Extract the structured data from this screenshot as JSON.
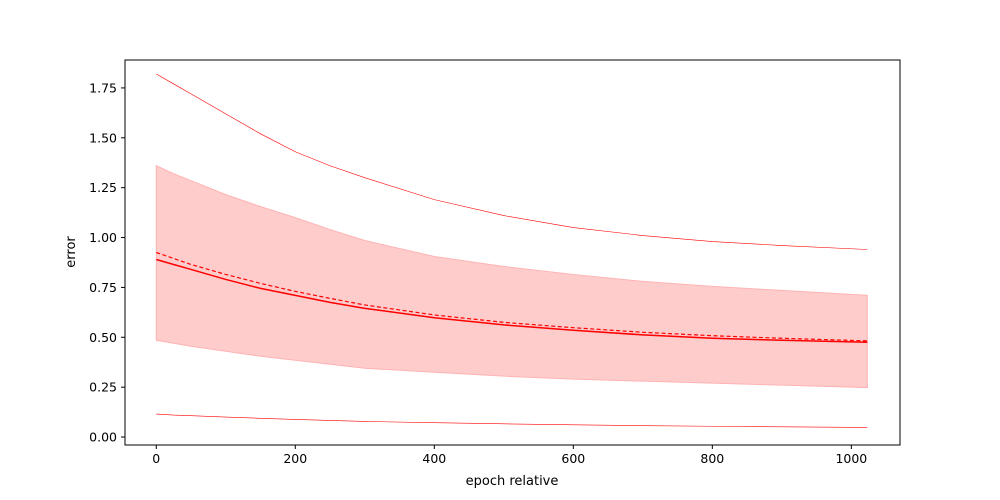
{
  "chart_data": {
    "type": "line",
    "title": "",
    "xlabel": "epoch relative",
    "ylabel": "error",
    "xlim": [
      -45,
      1070
    ],
    "ylim": [
      -0.04,
      1.89
    ],
    "x_ticks": [
      0,
      200,
      400,
      600,
      800,
      1000
    ],
    "y_ticks": [
      0.0,
      0.25,
      0.5,
      0.75,
      1.0,
      1.25,
      1.5,
      1.75
    ],
    "grid": false,
    "legend": "none",
    "x": [
      0,
      25,
      50,
      100,
      150,
      200,
      250,
      300,
      400,
      500,
      600,
      700,
      800,
      900,
      1023
    ],
    "series": [
      {
        "role": "median",
        "style": "solid",
        "color": "#ff0000",
        "values": [
          0.89,
          0.865,
          0.84,
          0.79,
          0.745,
          0.71,
          0.675,
          0.645,
          0.598,
          0.562,
          0.535,
          0.512,
          0.495,
          0.485,
          0.475
        ]
      },
      {
        "role": "mean",
        "style": "dashed",
        "color": "#ff0000",
        "values": [
          0.925,
          0.895,
          0.865,
          0.815,
          0.77,
          0.73,
          0.695,
          0.662,
          0.612,
          0.575,
          0.548,
          0.525,
          0.508,
          0.495,
          0.482
        ]
      },
      {
        "role": "band-upper",
        "color": "#ffcccc",
        "values": [
          1.36,
          1.32,
          1.285,
          1.215,
          1.155,
          1.1,
          1.04,
          0.985,
          0.905,
          0.855,
          0.815,
          0.78,
          0.755,
          0.735,
          0.71
        ]
      },
      {
        "role": "band-lower",
        "color": "#ffcccc",
        "values": [
          0.485,
          0.47,
          0.455,
          0.43,
          0.405,
          0.385,
          0.365,
          0.345,
          0.325,
          0.305,
          0.29,
          0.28,
          0.27,
          0.26,
          0.248
        ]
      },
      {
        "role": "outer-upper",
        "style": "thin",
        "color": "#ff0000",
        "values": [
          1.82,
          1.77,
          1.72,
          1.62,
          1.52,
          1.43,
          1.36,
          1.3,
          1.19,
          1.11,
          1.05,
          1.01,
          0.98,
          0.96,
          0.94
        ]
      },
      {
        "role": "outer-lower",
        "style": "thin",
        "color": "#ff0000",
        "values": [
          0.115,
          0.11,
          0.107,
          0.1,
          0.094,
          0.088,
          0.083,
          0.078,
          0.072,
          0.066,
          0.061,
          0.057,
          0.054,
          0.051,
          0.048
        ]
      }
    ]
  }
}
